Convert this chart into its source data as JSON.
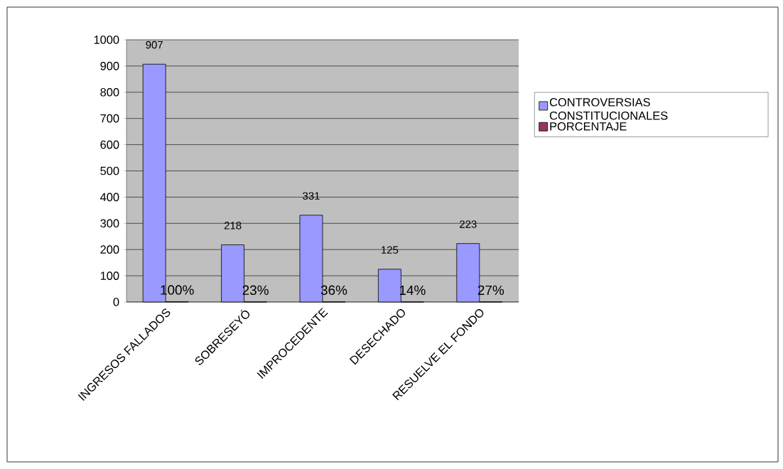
{
  "chart_data": {
    "type": "bar",
    "categories": [
      "INGRESOS FALLADOS",
      "SOBRESEYÓ",
      "IMPROCEDENTE",
      "DESECHADO",
      "RESUELVE EL FONDO"
    ],
    "series": [
      {
        "name": "CONTROVERSIAS CONSTITUCIONALES",
        "color": "#9999ff",
        "values": [
          907,
          218,
          331,
          125,
          223
        ],
        "value_labels": [
          "907",
          "218",
          "331",
          "125",
          "223"
        ]
      },
      {
        "name": "PORCENTAJE",
        "color": "#993366",
        "values": [
          1,
          0.23,
          0.36,
          0.14,
          0.27
        ],
        "value_labels": [
          "100%",
          "23%",
          "36%",
          "14%",
          "27%"
        ]
      }
    ],
    "ylim": [
      0,
      1000
    ],
    "yticks": [
      0,
      100,
      200,
      300,
      400,
      500,
      600,
      700,
      800,
      900,
      1000
    ],
    "grid": "y",
    "legend": "right"
  }
}
